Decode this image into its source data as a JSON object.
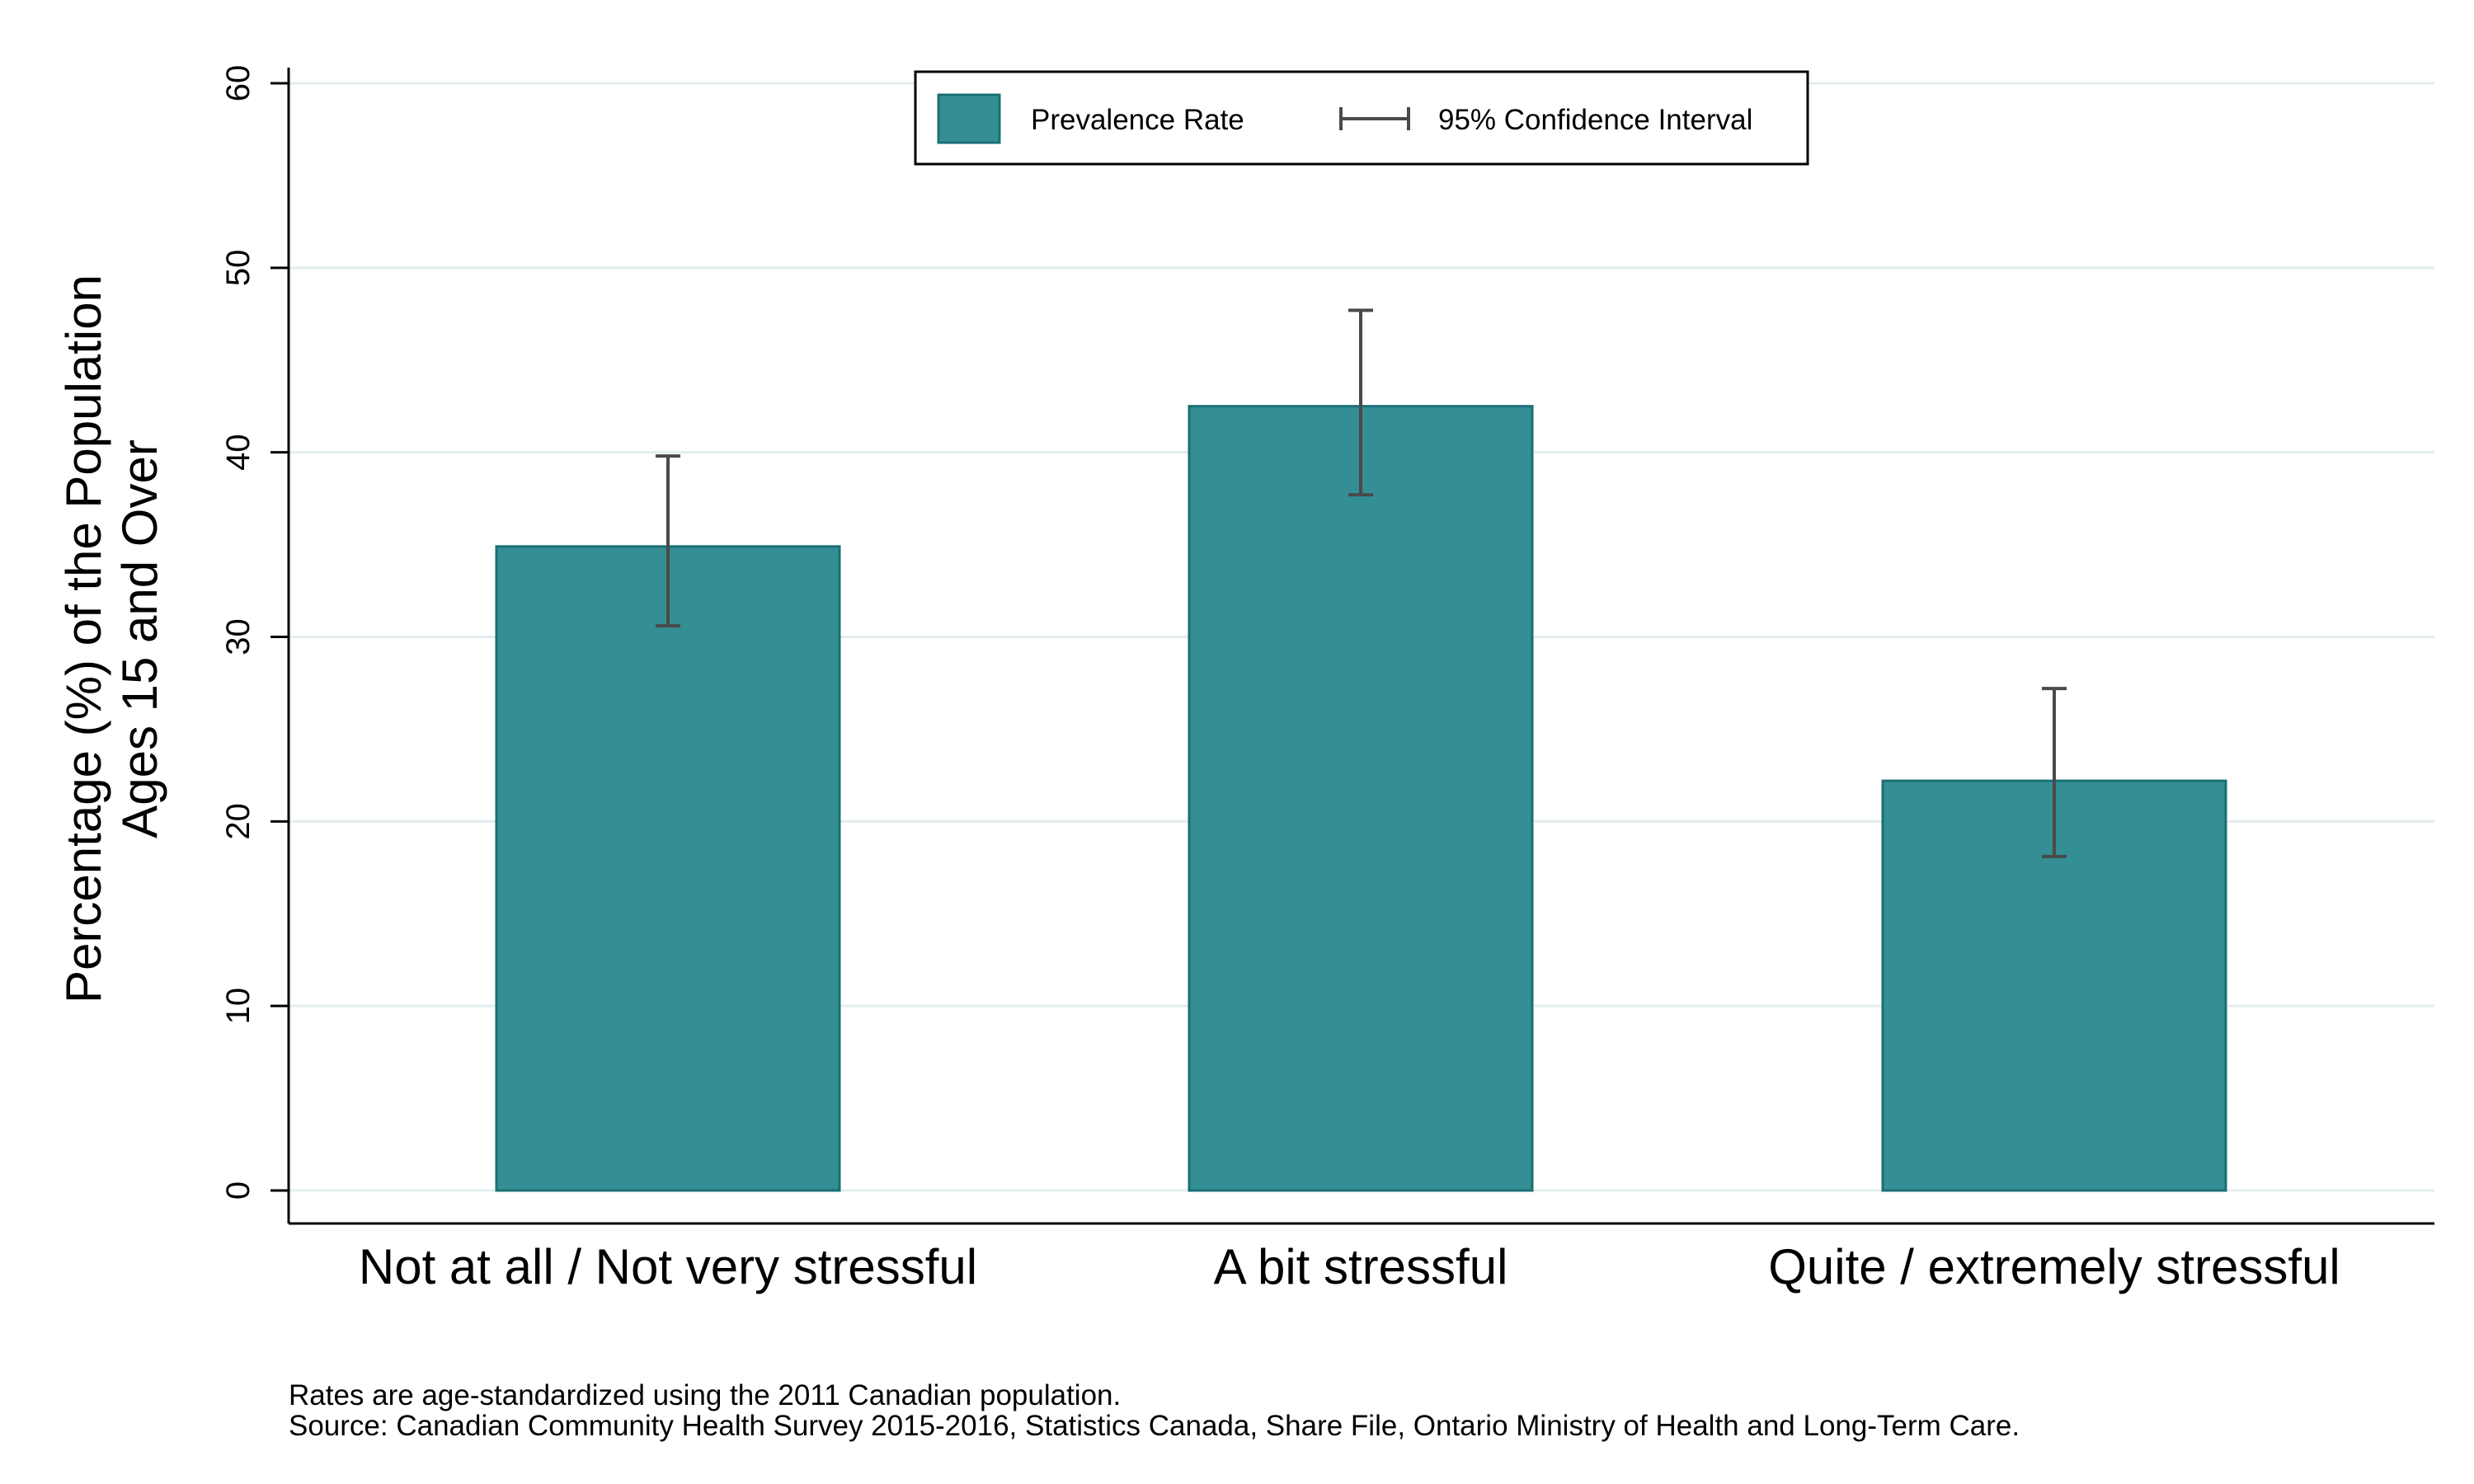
{
  "chart_data": {
    "type": "bar",
    "categories": [
      "Not at all / Not very stressful",
      "A bit stressful",
      "Quite / extremely stressful"
    ],
    "series": [
      {
        "name": "Prevalence Rate",
        "values": [
          34.9,
          42.5,
          22.2
        ],
        "ci_low": [
          30.6,
          37.7,
          18.1
        ],
        "ci_high": [
          39.8,
          47.7,
          27.2
        ]
      }
    ],
    "ylabel_line1": "Percentage (%) of the Population",
    "ylabel_line2": "Ages 15 and Over",
    "ylim": [
      0,
      60
    ],
    "yticks": [
      0,
      10,
      20,
      30,
      40,
      50,
      60
    ],
    "grid": true,
    "legend": {
      "placement": "top-center",
      "bar_label": "Prevalence Rate",
      "ci_label": "95% Confidence Interval"
    },
    "notes": [
      "Rates are age-standardized using the 2011 Canadian population.",
      "Source: Canadian Community Health Survey 2015-2016, Statistics Canada, Share File, Ontario Ministry of Health and Long-Term Care."
    ],
    "colors": {
      "bar_fill": "#348f94",
      "bar_stroke": "#1a6f75",
      "error_bar": "#4a4a4a",
      "grid": "#e3ecec",
      "axis": "#000000"
    }
  }
}
